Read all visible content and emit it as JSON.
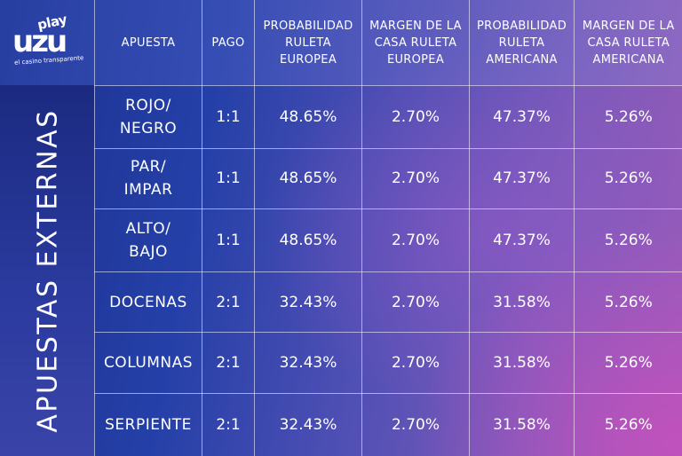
{
  "brand": {
    "logo_play": "play",
    "logo_name": "uzu",
    "logo_tagline": "el casino transparente"
  },
  "side_label": "APUESTAS EXTERNAS",
  "table": {
    "headers": [
      "APUESTA",
      "PAGO",
      "PROBABILIDAD RULETA EUROPEA",
      "MARGEN DE LA CASA RULETA EUROPEA",
      "PROBABILIDAD RULETA AMERICANA",
      "MARGEN DE LA CASA RULETA AMERICANA"
    ],
    "rows": [
      {
        "bet": [
          "ROJO/",
          "NEGRO"
        ],
        "payout": "1:1",
        "prob_eu": "48.65%",
        "edge_eu": "2.70%",
        "prob_us": "47.37%",
        "edge_us": "5.26%"
      },
      {
        "bet": [
          "PAR/",
          "IMPAR"
        ],
        "payout": "1:1",
        "prob_eu": "48.65%",
        "edge_eu": "2.70%",
        "prob_us": "47.37%",
        "edge_us": "5.26%"
      },
      {
        "bet": [
          "ALTO/",
          "BAJO"
        ],
        "payout": "1:1",
        "prob_eu": "48.65%",
        "edge_eu": "2.70%",
        "prob_us": "47.37%",
        "edge_us": "5.26%"
      },
      {
        "bet": [
          "DOCENAS"
        ],
        "payout": "2:1",
        "prob_eu": "32.43%",
        "edge_eu": "2.70%",
        "prob_us": "31.58%",
        "edge_us": "5.26%"
      },
      {
        "bet": [
          "COLUMNAS"
        ],
        "payout": "2:1",
        "prob_eu": "32.43%",
        "edge_eu": "2.70%",
        "prob_us": "31.58%",
        "edge_us": "5.26%"
      },
      {
        "bet": [
          "SERPIENTE"
        ],
        "payout": "2:1",
        "prob_eu": "32.43%",
        "edge_eu": "2.70%",
        "prob_us": "31.58%",
        "edge_us": "5.26%"
      }
    ]
  }
}
